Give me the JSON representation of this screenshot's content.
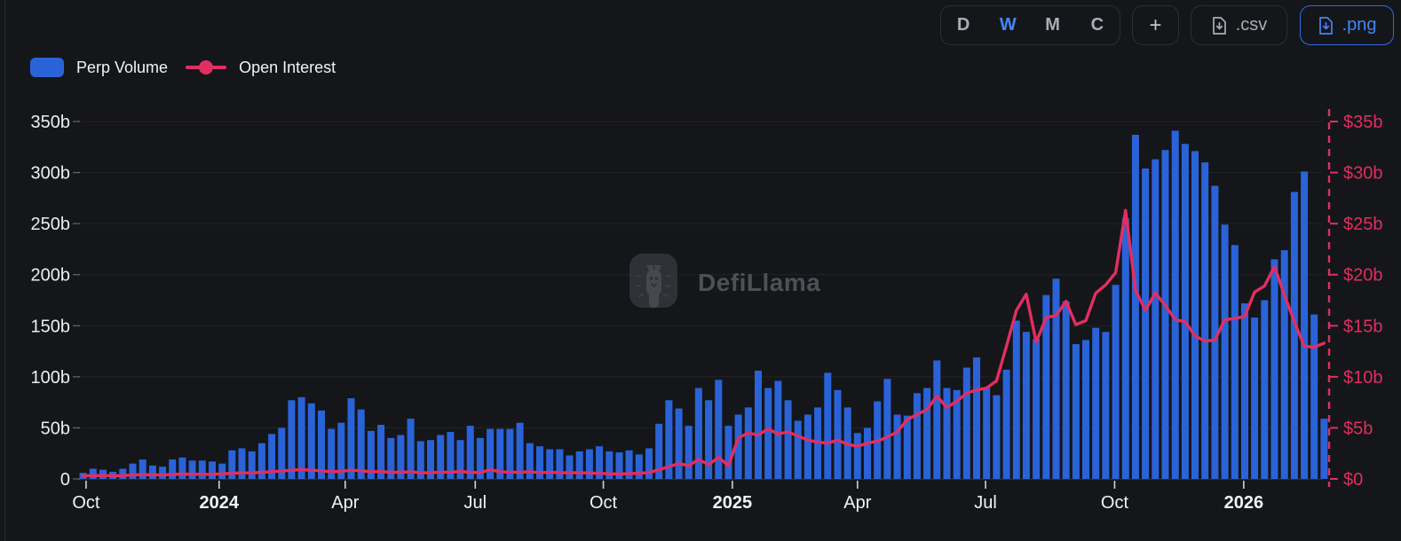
{
  "header": {
    "range_buttons": [
      "D",
      "W",
      "M",
      "C"
    ],
    "active_range": "W",
    "add_label": "+",
    "csv_label": ".csv",
    "png_label": ".png",
    "active_download": ".png"
  },
  "legend": [
    {
      "label": "Perp Volume",
      "type": "bar",
      "color": "#2a63d8"
    },
    {
      "label": "Open Interest",
      "type": "line",
      "color": "#e22e61"
    }
  ],
  "watermark": {
    "text": "DefiLlama"
  },
  "colors": {
    "background": "#15161a",
    "bar": "#2a63d8",
    "line": "#e22e61",
    "left_axis_text": "#eceef2",
    "right_axis_text": "#e02e5e",
    "x_axis_text": "#f2f3f5",
    "grid": "rgba(255,255,255,0.06)",
    "tick": "#cfd2d6",
    "active_blue": "#4487f6"
  },
  "chart_data": {
    "type": "bar+line",
    "interval": "weekly",
    "title": "",
    "x_ticks": [
      {
        "label": "Oct",
        "week": 0.3,
        "bold": false
      },
      {
        "label": "2024",
        "week": 13.7,
        "bold": true
      },
      {
        "label": "Apr",
        "week": 26.4,
        "bold": false
      },
      {
        "label": "Jul",
        "week": 39.5,
        "bold": false
      },
      {
        "label": "Oct",
        "week": 52.4,
        "bold": false
      },
      {
        "label": "2025",
        "week": 65.4,
        "bold": true
      },
      {
        "label": "Apr",
        "week": 78.0,
        "bold": false
      },
      {
        "label": "Jul",
        "week": 90.9,
        "bold": false
      },
      {
        "label": "Oct",
        "week": 103.9,
        "bold": false
      },
      {
        "label": "2026",
        "week": 116.9,
        "bold": true
      }
    ],
    "left_axis": {
      "min": 0,
      "max": 350,
      "unit": "b",
      "ticks": [
        {
          "value": 0,
          "label": "0"
        },
        {
          "value": 50,
          "label": "50b"
        },
        {
          "value": 100,
          "label": "100b"
        },
        {
          "value": 150,
          "label": "150b"
        },
        {
          "value": 200,
          "label": "200b"
        },
        {
          "value": 250,
          "label": "250b"
        },
        {
          "value": 300,
          "label": "300b"
        },
        {
          "value": 350,
          "label": "350b"
        }
      ]
    },
    "right_axis": {
      "min": 0,
      "max": 35,
      "unit": "$b",
      "ticks": [
        {
          "value": 0,
          "label": "$0"
        },
        {
          "value": 5,
          "label": "$5b"
        },
        {
          "value": 10,
          "label": "$10b"
        },
        {
          "value": 15,
          "label": "$15b"
        },
        {
          "value": 20,
          "label": "$20b"
        },
        {
          "value": 25,
          "label": "$25b"
        },
        {
          "value": 30,
          "label": "$30b"
        },
        {
          "value": 35,
          "label": "$35b"
        }
      ]
    },
    "series": [
      {
        "name": "Perp Volume",
        "type": "bar",
        "axis": "left",
        "unit": "b",
        "color": "#2a63d8",
        "values": [
          6,
          10,
          9,
          7,
          10,
          15,
          19,
          13,
          12,
          19,
          21,
          18,
          18,
          17,
          15,
          28,
          30,
          27,
          35,
          44,
          50,
          77,
          80,
          74,
          67,
          49,
          55,
          79,
          68,
          47,
          53,
          40,
          43,
          59,
          37,
          38,
          43,
          46,
          38,
          52,
          40,
          49,
          49,
          49,
          55,
          35,
          32,
          29,
          29,
          23,
          27,
          29,
          32,
          27,
          26,
          28,
          24,
          30,
          54,
          77,
          69,
          52,
          89,
          77,
          97,
          52,
          63,
          70,
          106,
          89,
          96,
          77,
          57,
          63,
          70,
          104,
          87,
          70,
          45,
          50,
          76,
          98,
          63,
          62,
          84,
          89,
          116,
          89,
          87,
          109,
          119,
          89,
          82,
          107,
          155,
          144,
          137,
          180,
          196,
          174,
          132,
          136,
          148,
          144,
          190,
          255,
          337,
          304,
          313,
          322,
          341,
          328,
          321,
          310,
          287,
          249,
          229,
          172,
          158,
          175,
          215,
          224,
          281,
          301,
          161,
          59
        ]
      },
      {
        "name": "Open Interest",
        "type": "line",
        "axis": "right",
        "unit": "$b",
        "color": "#e22e61",
        "values": [
          0.3,
          0.32,
          0.34,
          0.3,
          0.33,
          0.38,
          0.42,
          0.4,
          0.4,
          0.44,
          0.48,
          0.46,
          0.45,
          0.45,
          0.5,
          0.55,
          0.6,
          0.58,
          0.65,
          0.7,
          0.78,
          0.85,
          0.9,
          0.85,
          0.8,
          0.7,
          0.75,
          0.85,
          0.8,
          0.7,
          0.72,
          0.65,
          0.65,
          0.7,
          0.6,
          0.6,
          0.66,
          0.66,
          0.72,
          0.65,
          0.62,
          0.9,
          0.7,
          0.66,
          0.66,
          0.7,
          0.62,
          0.66,
          0.6,
          0.62,
          0.6,
          0.58,
          0.55,
          0.5,
          0.48,
          0.52,
          0.56,
          0.62,
          0.9,
          1.2,
          1.5,
          1.3,
          1.9,
          1.4,
          2.1,
          1.3,
          4.0,
          4.5,
          4.3,
          4.9,
          4.4,
          4.6,
          4.2,
          3.8,
          3.6,
          3.5,
          3.8,
          3.4,
          3.2,
          3.5,
          3.7,
          4.1,
          4.6,
          5.8,
          6.3,
          6.8,
          8.1,
          7.0,
          7.6,
          8.4,
          8.7,
          8.9,
          9.6,
          13.0,
          16.5,
          18.1,
          13.4,
          15.8,
          16.0,
          17.4,
          15.1,
          15.5,
          18.2,
          19.0,
          20.2,
          26.3,
          18.5,
          16.5,
          18.2,
          17.0,
          15.6,
          15.4,
          14.0,
          13.5,
          13.6,
          15.6,
          15.7,
          15.9,
          18.3,
          18.9,
          20.8,
          18.0,
          15.4,
          13.0,
          12.9,
          13.3
        ]
      }
    ],
    "end_marker": "dashed-vertical-line"
  }
}
